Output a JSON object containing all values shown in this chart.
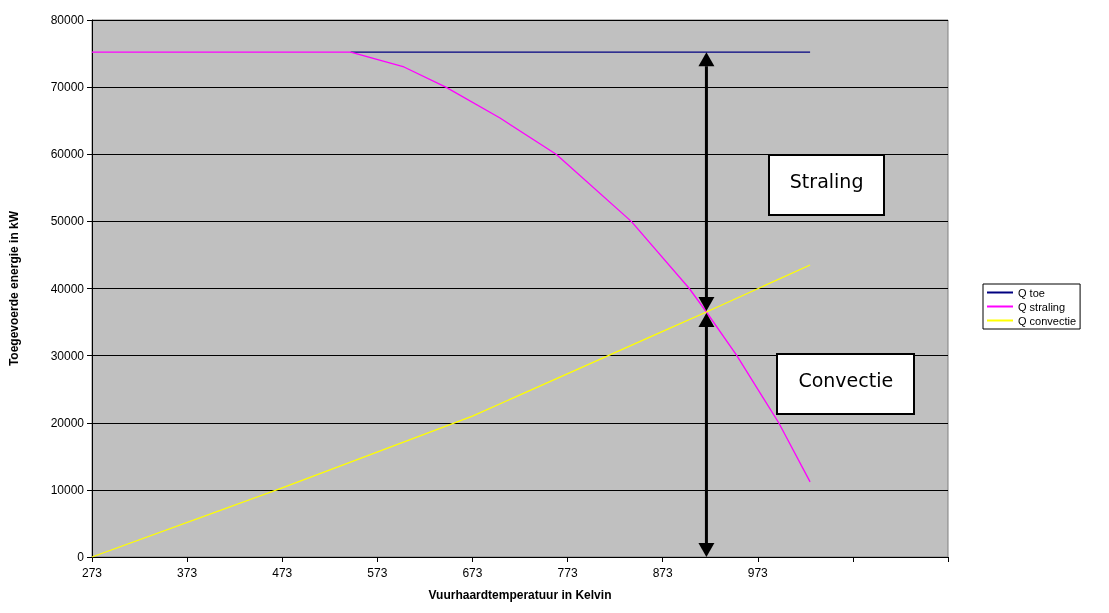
{
  "chart_data": {
    "type": "line",
    "xlabel": "Vuurhaardtemperatuur in Kelvin",
    "ylabel": "Toegevoerde energie in kW",
    "xlim": [
      273,
      1173
    ],
    "xticks": [
      273,
      373,
      473,
      573,
      673,
      773,
      873,
      973,
      {
        "value": 1073,
        "label": null
      },
      {
        "value": 1173,
        "label": null
      }
    ],
    "ylim": [
      0,
      80000
    ],
    "yticks": [
      0,
      10000,
      20000,
      30000,
      40000,
      50000,
      60000,
      70000,
      80000
    ],
    "grid": "y",
    "legend": "right",
    "marker": "none",
    "line_style": "solid",
    "annotations": [
      "Straling",
      "Convectie"
    ],
    "series": [
      {
        "name": "Q toe",
        "color": "#000080",
        "x": [
          545,
          1028
        ],
        "values": [
          75200,
          75200
        ]
      },
      {
        "name": "Q straling",
        "color": "#ff00ff",
        "x": [
          273,
          545,
          601,
          645,
          702,
          761,
          840,
          901,
          919,
          951,
          995,
          1028
        ],
        "values": [
          75200,
          75200,
          73000,
          70000,
          65400,
          60000,
          50000,
          40000,
          36500,
          30000,
          20000,
          11200
        ]
      },
      {
        "name": "Q convectie",
        "color": "#ffff00",
        "x": [
          273,
          473,
          673,
          873,
          919,
          1028
        ],
        "values": [
          0,
          10300,
          21000,
          33600,
          36500,
          43500
        ]
      }
    ]
  }
}
